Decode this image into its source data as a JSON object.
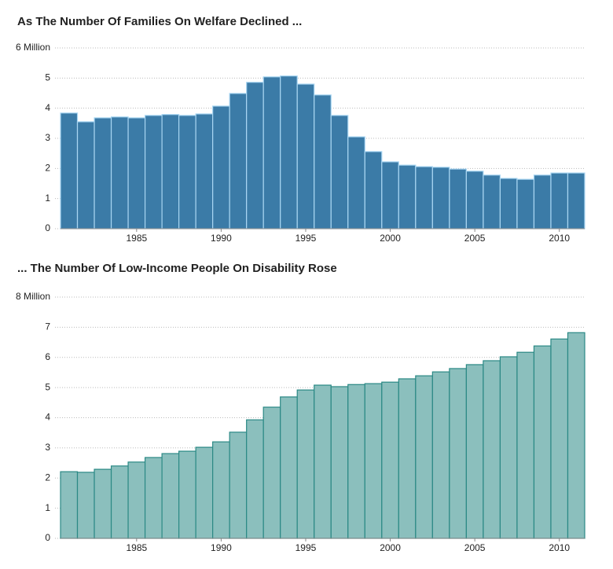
{
  "chart_data": [
    {
      "type": "bar",
      "title": "As The Number Of Families On Welfare Declined ...",
      "x": [
        1981,
        1982,
        1983,
        1984,
        1985,
        1986,
        1987,
        1988,
        1989,
        1990,
        1991,
        1992,
        1993,
        1994,
        1995,
        1996,
        1997,
        1998,
        1999,
        2000,
        2001,
        2002,
        2003,
        2004,
        2005,
        2006,
        2007,
        2008,
        2009,
        2010,
        2011
      ],
      "values": [
        3.84,
        3.55,
        3.68,
        3.71,
        3.68,
        3.76,
        3.79,
        3.76,
        3.81,
        4.07,
        4.49,
        4.86,
        5.04,
        5.07,
        4.8,
        4.44,
        3.76,
        3.05,
        2.56,
        2.22,
        2.11,
        2.06,
        2.04,
        1.98,
        1.91,
        1.78,
        1.67,
        1.64,
        1.78,
        1.85,
        1.85
      ],
      "color": "#3b7ba7",
      "edgecolor": "#a9d6f2",
      "xlim": [
        1980.5,
        2011.5
      ],
      "xticks": [
        1985,
        1990,
        1995,
        2000,
        2005,
        2010
      ],
      "ylim": [
        0,
        6
      ],
      "yticks": [
        0,
        1,
        2,
        3,
        4,
        5,
        {
          "value": 6,
          "label": "6 Million"
        }
      ],
      "grid": true
    },
    {
      "type": "bar",
      "title": "... The Number Of Low-Income People On Disability Rose",
      "x": [
        1981,
        1982,
        1983,
        1984,
        1985,
        1986,
        1987,
        1988,
        1989,
        1990,
        1991,
        1992,
        1993,
        1994,
        1995,
        1996,
        1997,
        1998,
        1999,
        2000,
        2001,
        2002,
        2003,
        2004,
        2005,
        2006,
        2007,
        2008,
        2009,
        2010,
        2011
      ],
      "values": [
        2.21,
        2.19,
        2.29,
        2.4,
        2.53,
        2.68,
        2.81,
        2.89,
        3.02,
        3.2,
        3.52,
        3.93,
        4.35,
        4.69,
        4.92,
        5.08,
        5.03,
        5.1,
        5.13,
        5.18,
        5.29,
        5.39,
        5.52,
        5.63,
        5.76,
        5.89,
        6.02,
        6.17,
        6.38,
        6.61,
        6.82
      ],
      "color": "#8bbfbd",
      "edgecolor": "#2b8985",
      "xlim": [
        1980.5,
        2011.5
      ],
      "xticks": [
        1985,
        1990,
        1995,
        2000,
        2005,
        2010
      ],
      "ylim": [
        0,
        8
      ],
      "yticks": [
        0,
        1,
        2,
        3,
        4,
        5,
        6,
        7,
        {
          "value": 8,
          "label": "8 Million"
        }
      ],
      "grid": true
    }
  ]
}
